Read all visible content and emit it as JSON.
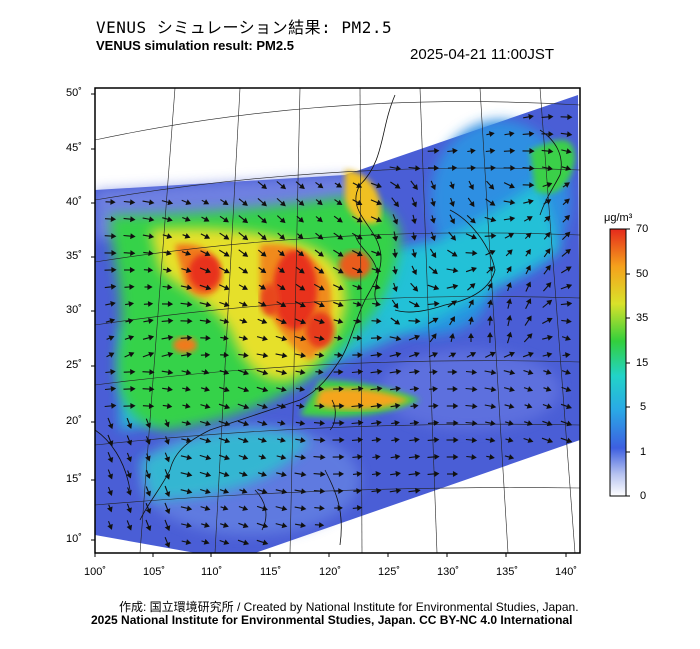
{
  "header": {
    "title_jp": "VENUS シミュレーション結果: PM2.5",
    "title_en": "VENUS simulation result: PM2.5",
    "timestamp": "2025-04-21 11:00JST"
  },
  "map": {
    "lat_ticks": [
      "50˚",
      "45˚",
      "40˚",
      "35˚",
      "30˚",
      "25˚",
      "20˚",
      "15˚",
      "10˚"
    ],
    "lon_ticks": [
      "100˚",
      "105˚",
      "110˚",
      "115˚",
      "120˚",
      "125˚",
      "130˚",
      "135˚",
      "140˚"
    ],
    "variable": "PM2.5",
    "colors": {
      "bg_low": "#4a5ed6",
      "low": "#3d6be8",
      "mid_blue": "#2fa6e6",
      "cyan": "#22d3d0",
      "green": "#34d24a",
      "yellow": "#e8e22a",
      "orange": "#f59b1c",
      "red": "#e8321c"
    }
  },
  "colorbar": {
    "unit": "μg/m³",
    "ticks": [
      "70",
      "50",
      "35",
      "15",
      "5",
      "1",
      "0"
    ]
  },
  "footer": {
    "credit": "作成: 国立環境研究所 / Created by National Institute for Environmental Studies, Japan.",
    "copyright": "2025 National Institute for Environmental Studies, Japan. CC BY-NC 4.0 International"
  }
}
